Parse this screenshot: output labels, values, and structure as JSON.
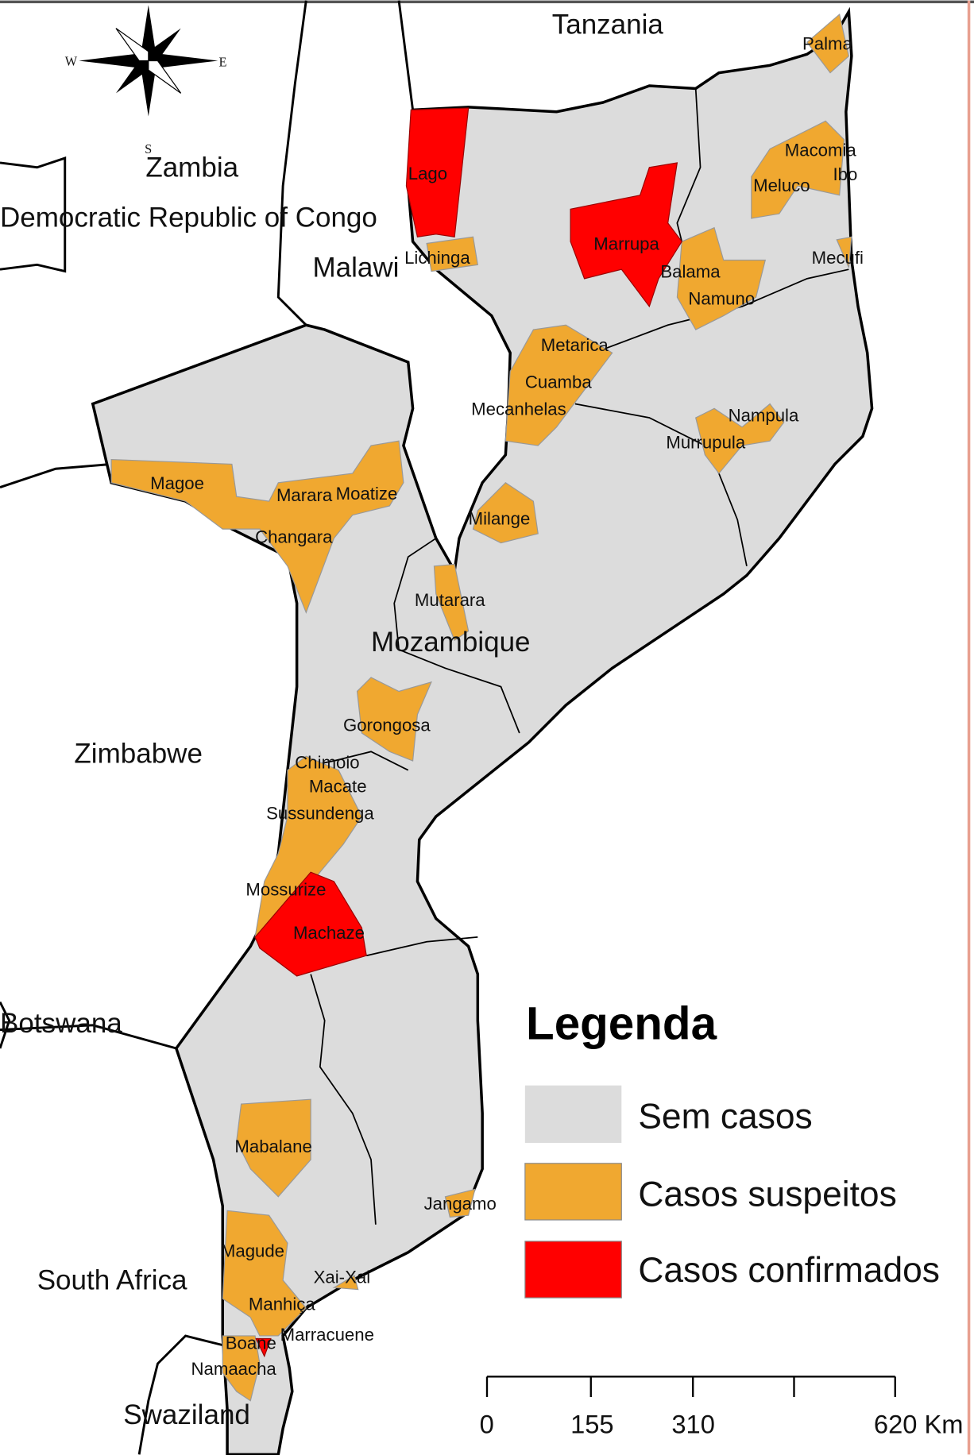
{
  "colors": {
    "no_cases": "#dcdcdc",
    "suspected": "#f0a830",
    "confirmed": "#ff0000",
    "border": "#000000",
    "background": "#ffffff"
  },
  "compass": {
    "icon": "compass-rose-icon",
    "w": "W",
    "e": "E",
    "s": "S"
  },
  "countries": [
    "Tanzania",
    "Zambia",
    "Democratic Republic of Congo",
    "Malawi",
    "Mozambique",
    "Zimbabwe",
    "Botswana",
    "South Africa",
    "Swaziland"
  ],
  "districts": [
    "Palma",
    "Macomia",
    "Ibo",
    "Meluco",
    "Lago",
    "Lichinga",
    "Marrupa",
    "Balama",
    "Namuno",
    "Mecufi",
    "Metarica",
    "Cuamba",
    "Mecanhelas",
    "Nampula",
    "Murrupula",
    "Magoe",
    "Marara",
    "Moatize",
    "Changara",
    "Milange",
    "Mutarara",
    "Gorongosa",
    "Chimoio",
    "Macate",
    "Sussundenga",
    "Mossurize",
    "Machaze",
    "Mabalane",
    "Jangamo",
    "Magude",
    "Xai-Xai",
    "Manhiça",
    "Marracuene",
    "Boane",
    "Namaacha"
  ],
  "legend": {
    "title": "Legenda",
    "items": [
      {
        "label": "Sem casos",
        "color": "#dcdcdc"
      },
      {
        "label": "Casos suspeitos",
        "color": "#f0a830"
      },
      {
        "label": "Casos confirmados",
        "color": "#ff0000"
      }
    ]
  },
  "scale_bar": {
    "labels": [
      "0",
      "155",
      "310",
      "620 Km"
    ]
  }
}
